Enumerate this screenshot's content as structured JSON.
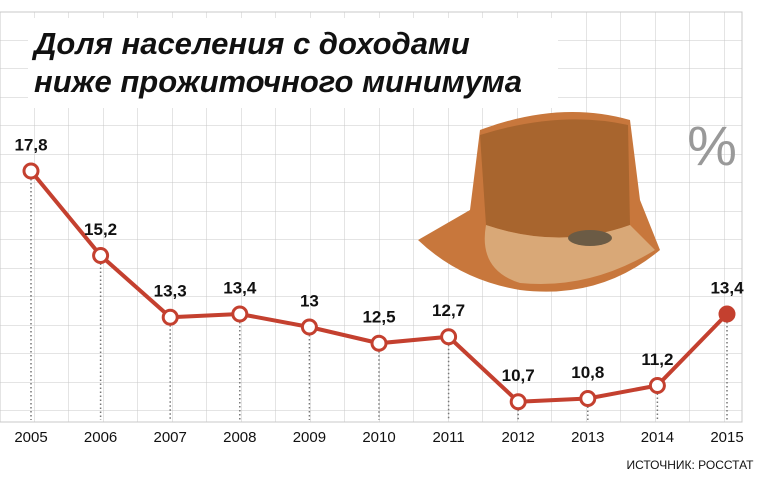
{
  "chart_data": {
    "type": "line",
    "title": [
      "Доля населения с доходами",
      "ниже прожиточного минимума"
    ],
    "unit": "%",
    "source": "ИСТОЧНИК: РОССТАТ",
    "categories": [
      "2005",
      "2006",
      "2007",
      "2008",
      "2009",
      "2010",
      "2011",
      "2012",
      "2013",
      "2014",
      "2015"
    ],
    "values": [
      17.8,
      15.2,
      13.3,
      13.4,
      13,
      12.5,
      12.7,
      10.7,
      10.8,
      11.2,
      13.4
    ],
    "value_labels": [
      "17,8",
      "15,2",
      "13,3",
      "13,4",
      "13",
      "12,5",
      "12,7",
      "10,7",
      "10,8",
      "11,2",
      "13,4"
    ],
    "color": "#c4402f",
    "ylim": [
      10,
      19
    ]
  }
}
